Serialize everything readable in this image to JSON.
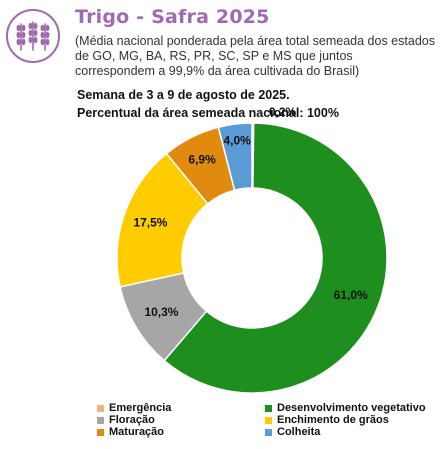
{
  "header": {
    "title": "Trigo - Safra 2025",
    "subtitle": "(Média nacional ponderada pela área total semeada dos estados de GO, MG, BA, RS, PR, SC, SP e MS que juntos correspondem a 99,9% da área cultivada do Brasil)",
    "week": "Semana de 3 a 9 de agosto de 2025.",
    "percent_note": "Percentual da área semeada nacional: 100%",
    "logo_icon": "wheat-icon"
  },
  "chart_data": {
    "type": "pie",
    "donut": true,
    "categories": [
      "Emergência",
      "Desenvolvimento vegetativo",
      "Floração",
      "Enchimento de grãos",
      "Maturação",
      "Colheita"
    ],
    "values": [
      0.2,
      61.0,
      10.3,
      17.5,
      6.9,
      4.0
    ],
    "labels": [
      "0,2%",
      "61,0%",
      "10,3%",
      "17,5%",
      "6,9%",
      "4,0%"
    ],
    "colors": [
      "#f4b183",
      "#1e8f1e",
      "#a6a6a6",
      "#ffcc00",
      "#e08a10",
      "#5b9bd5"
    ],
    "legend_position": "bottom",
    "title": "Trigo - Safra 2025"
  }
}
